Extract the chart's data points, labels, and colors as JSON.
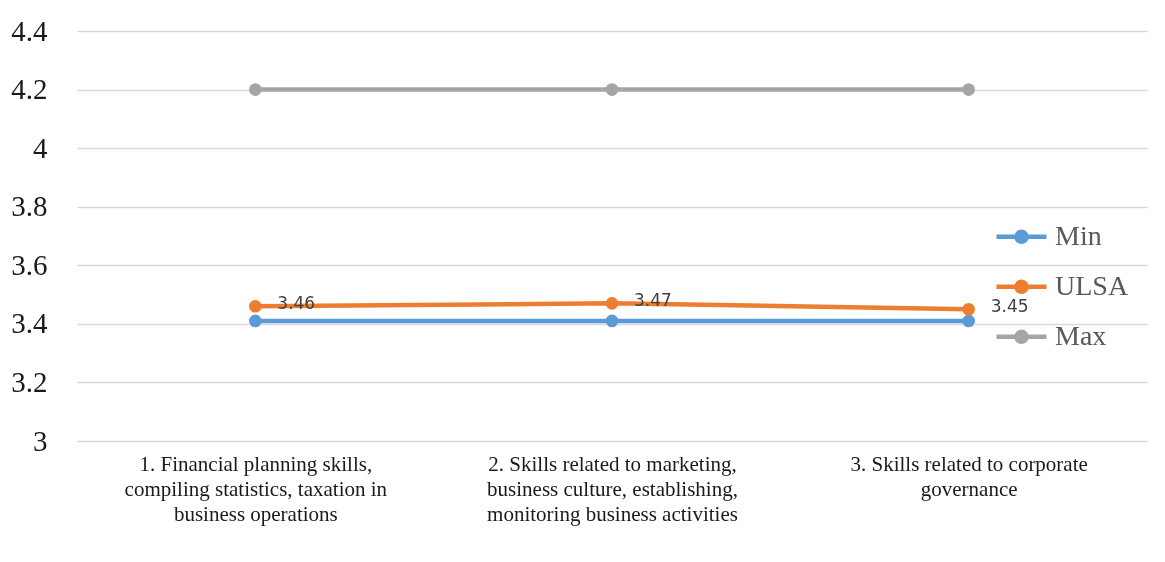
{
  "chart_data": {
    "type": "line",
    "categories": [
      "1. Financial planning skills, compiling statistics, taxation in business operations",
      "2. Skills related to marketing, business culture, establishing, monitoring business activities",
      "3. Skills related to corporate governance"
    ],
    "series": [
      {
        "name": "Min",
        "color": "#5b9bd5",
        "values": [
          3.41,
          3.41,
          3.41
        ]
      },
      {
        "name": "ULSA",
        "color": "#ed7d31",
        "values": [
          3.46,
          3.47,
          3.45
        ],
        "value_labels": [
          "3.46",
          "3.47",
          "3.45"
        ]
      },
      {
        "name": "Max",
        "color": "#a5a5a5",
        "values": [
          4.2,
          4.2,
          4.2
        ]
      }
    ],
    "ylim": [
      3,
      4.4
    ],
    "yticks": [
      3,
      3.2,
      3.4,
      3.6,
      3.8,
      4,
      4.2,
      4.4
    ],
    "grid": "y",
    "legend": "right",
    "marker": "circle",
    "line_style": "solid"
  }
}
